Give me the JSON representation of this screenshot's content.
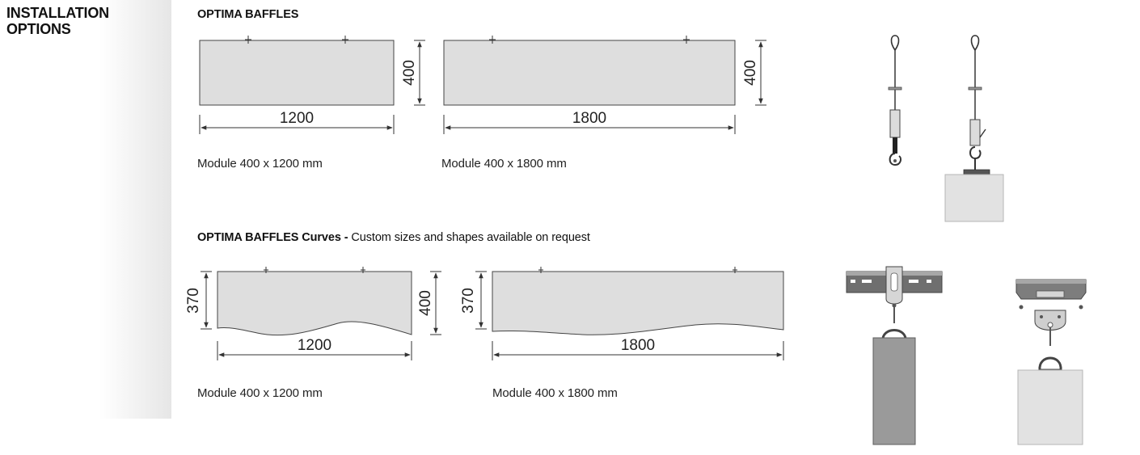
{
  "section": {
    "title": "INSTALLATION OPTIONS"
  },
  "baffles": {
    "heading": "OPTIMA BAFFLES",
    "modules": [
      {
        "width": "1200",
        "height": "400",
        "caption": "Module 400 x 1200 mm"
      },
      {
        "width": "1800",
        "height": "400",
        "caption": "Module 400 x 1800 mm"
      }
    ]
  },
  "curves": {
    "heading_bold": "OPTIMA BAFFLES Curves -",
    "heading_rest": " Custom sizes and shapes available on request",
    "modules": [
      {
        "width": "1200",
        "min_height": "370",
        "max_height": "400",
        "caption": "Module 400 x 1200 mm"
      },
      {
        "width": "1800",
        "min_height": "370",
        "caption": "Module 400 x 1800 mm"
      }
    ]
  },
  "colors": {
    "panel_fill": "#dedede",
    "line": "#333333",
    "hardware": "#8c8c8c",
    "rail": "#7a7a7a"
  }
}
